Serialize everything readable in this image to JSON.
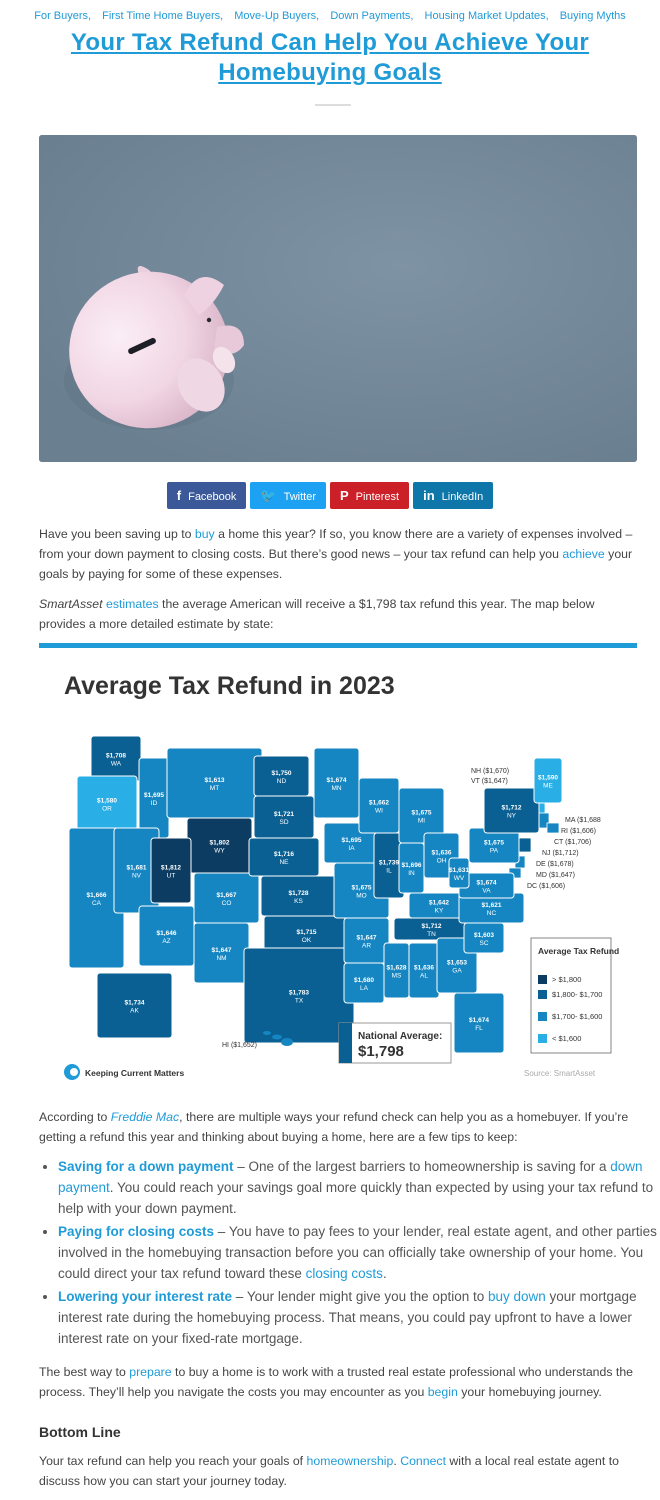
{
  "categories": [
    "For Buyers,",
    "First Time Home Buyers,",
    "Move-Up Buyers,",
    "Down Payments,",
    "Housing Market Updates,",
    "Buying Myths"
  ],
  "title": "Your Tax Refund Can Help You Achieve Your Homebuying Goals",
  "share": {
    "facebook": "Facebook",
    "twitter": "Twitter",
    "pinterest": "Pinterest",
    "linkedin": "LinkedIn"
  },
  "p1": {
    "a": "Have you been saving up to ",
    "buy": "buy",
    "b": " a home this year? If so, you know there are a variety of expenses involved – from your down payment to closing costs. But there’s good news – your tax refund can help you ",
    "achieve": "achieve",
    "c": " your goals by paying for some of these expenses."
  },
  "p2": {
    "source": "SmartAsset",
    "estimates": "estimates",
    "rest": " the average American will receive a $1,798 tax refund this year. The map below provides a more detailed estimate by state:"
  },
  "map": {
    "title": "Average Tax Refund in 2023",
    "legend_title": "Average Tax Refund",
    "legend": [
      "> $1,800",
      "$1,800- $1,700",
      "$1,700- $1,600",
      "< $1,600"
    ],
    "colors": [
      "#0d3c62",
      "#0a5f93",
      "#1586c2",
      "#29aee6"
    ],
    "national_label": "National Average:",
    "national_value": "$1,798",
    "brand": "Keeping Current Matters",
    "source": "Source: SmartAsset",
    "ne_labels": [
      "NH ($1,670)",
      "VT ($1,647)"
    ],
    "east_labels": [
      "MA ($1,688",
      "RI ($1,606)",
      "CT ($1,706)",
      "NJ ($1,712)",
      "DE ($1,678)",
      "MD ($1,647)",
      "DC ($1,606)"
    ],
    "hi_label": "HI ($1,652)",
    "states": [
      {
        "ab": "WA",
        "v": "$1,708"
      },
      {
        "ab": "OR",
        "v": "$1,580"
      },
      {
        "ab": "ID",
        "v": "$1,695"
      },
      {
        "ab": "MT",
        "v": "$1,613"
      },
      {
        "ab": "WY",
        "v": "$1,802"
      },
      {
        "ab": "CA",
        "v": "$1,666"
      },
      {
        "ab": "NV",
        "v": "$1,681"
      },
      {
        "ab": "UT",
        "v": "$1,812"
      },
      {
        "ab": "CO",
        "v": "$1,667"
      },
      {
        "ab": "AZ",
        "v": "$1,646"
      },
      {
        "ab": "NM",
        "v": "$1,647"
      },
      {
        "ab": "ND",
        "v": "$1,750"
      },
      {
        "ab": "SD",
        "v": "$1,721"
      },
      {
        "ab": "NE",
        "v": "$1,716"
      },
      {
        "ab": "KS",
        "v": "$1,728"
      },
      {
        "ab": "OK",
        "v": "$1,715"
      },
      {
        "ab": "TX",
        "v": "$1,783"
      },
      {
        "ab": "MN",
        "v": "$1,674"
      },
      {
        "ab": "IA",
        "v": "$1,695"
      },
      {
        "ab": "MO",
        "v": "$1,675"
      },
      {
        "ab": "AR",
        "v": "$1,647"
      },
      {
        "ab": "LA",
        "v": "$1,680"
      },
      {
        "ab": "WI",
        "v": "$1,662"
      },
      {
        "ab": "IL",
        "v": "$1,739"
      },
      {
        "ab": "MI",
        "v": "$1,675"
      },
      {
        "ab": "IN",
        "v": "$1,696"
      },
      {
        "ab": "OH",
        "v": "$1,636"
      },
      {
        "ab": "KY",
        "v": "$1,642"
      },
      {
        "ab": "TN",
        "v": "$1,712"
      },
      {
        "ab": "MS",
        "v": "$1,628"
      },
      {
        "ab": "AL",
        "v": "$1,636"
      },
      {
        "ab": "GA",
        "v": "$1,653"
      },
      {
        "ab": "FL",
        "v": "$1,674"
      },
      {
        "ab": "SC",
        "v": "$1,603"
      },
      {
        "ab": "NC",
        "v": "$1,621"
      },
      {
        "ab": "VA",
        "v": "$1,674"
      },
      {
        "ab": "WV",
        "v": "$1,631"
      },
      {
        "ab": "PA",
        "v": "$1,675"
      },
      {
        "ab": "NY",
        "v": "$1,712"
      },
      {
        "ab": "ME",
        "v": "$1,590"
      },
      {
        "ab": "AK",
        "v": "$1,734"
      }
    ]
  },
  "p3": {
    "a": "According to ",
    "freddie": "Freddie Mac",
    "b": ", there are multiple ways your refund check can help you as a homebuyer. If you’re getting a refund this year and thinking about buying a home, here are a few tips to keep:"
  },
  "tips": [
    {
      "title": "Saving for a down payment",
      "a": " – One of the largest barriers to homeownership is saving for a ",
      "link": "down payment",
      "b": ". You could reach your savings goal more quickly than expected by using your tax refund to help with your down payment."
    },
    {
      "title": "Paying for closing costs",
      "a": " – You have to pay fees to your lender, real estate agent, and other parties involved in the homebuying transaction before you can officially take ownership of your home. You could direct your tax refund toward these ",
      "link": "closing costs",
      "b": "."
    },
    {
      "title": "Lowering your interest rate",
      "a": " – Your lender might give you the option to ",
      "link": "buy down",
      "b": " your mortgage interest rate during the homebuying process. That means, you could pay upfront to have a lower interest rate on your fixed-rate mortgage."
    }
  ],
  "p4": {
    "a": "The best way to ",
    "prepare": "prepare",
    "b": " to buy a home is to work with a trusted real estate professional who understands the process. They’ll help you navigate the costs you may encounter as you ",
    "begin": "begin",
    "c": " your homebuying journey."
  },
  "bottom_title": "Bottom Line",
  "p5": {
    "a": "Your tax refund can help you reach your goals of ",
    "home": "homeownership",
    "b": ". ",
    "connect": "Connect",
    "c": " with a local real estate agent to discuss how you can start your journey today."
  }
}
